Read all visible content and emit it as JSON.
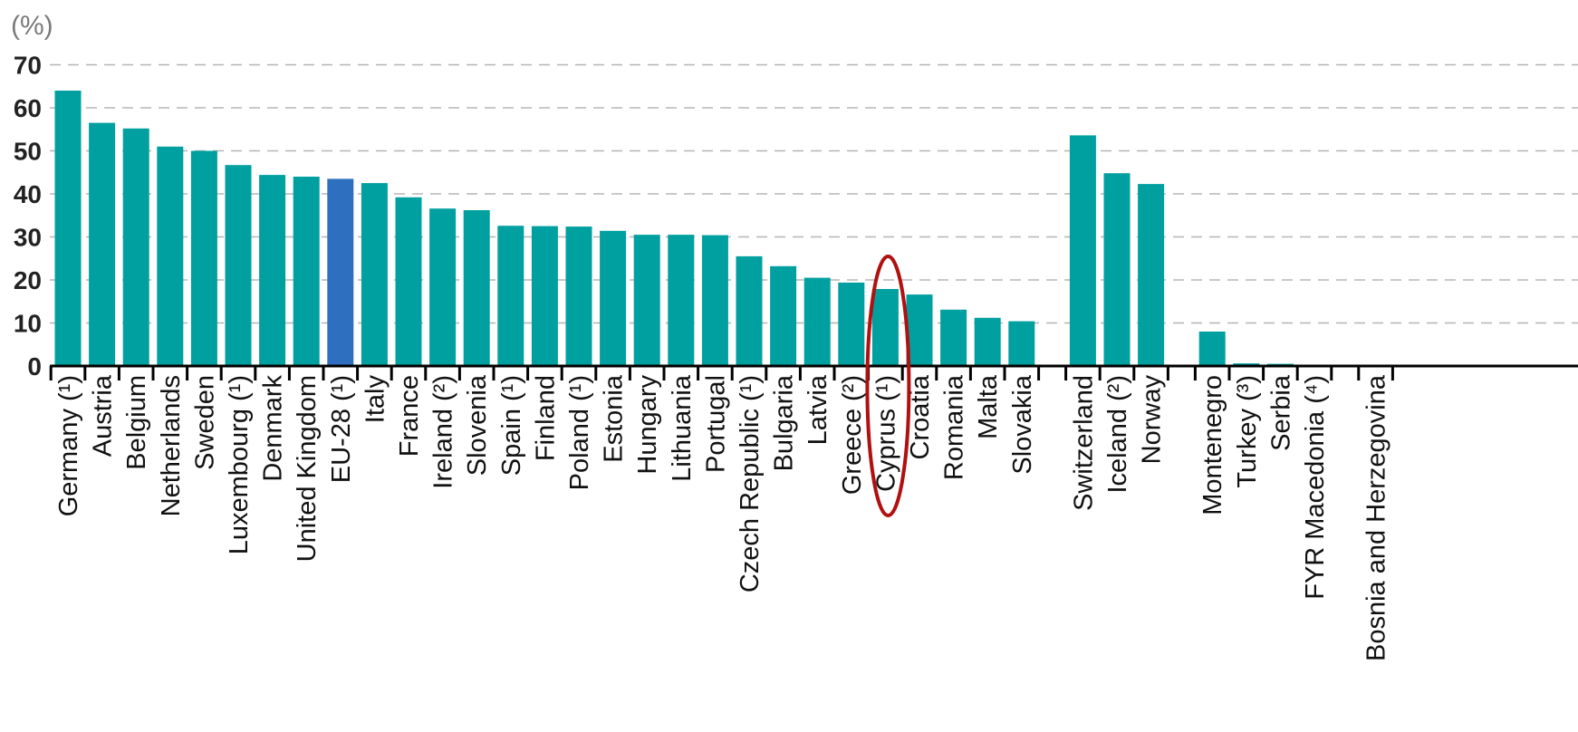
{
  "chart_data": {
    "type": "bar",
    "unit_label": "(%)",
    "ylim": [
      0,
      70
    ],
    "yticks": [
      0,
      10,
      20,
      30,
      40,
      50,
      60,
      70
    ],
    "grid": true,
    "colors": {
      "bar": "#00a0a0",
      "highlight": "#2e6fbf",
      "annotation": "#b01010",
      "axis": "#000000"
    },
    "highlight_category": "EU-28 (¹)",
    "annotated_category": "Cyprus (¹)",
    "groups": [
      {
        "categories": [
          "Germany (¹)",
          "Austria",
          "Belgium",
          "Netherlands",
          "Sweden",
          "Luxembourg (¹)",
          "Denmark",
          "United Kingdom",
          "EU-28 (¹)",
          "Italy",
          "France",
          "Ireland (²)",
          "Slovenia",
          "Spain (¹)",
          "Finland",
          "Poland (¹)",
          "Estonia",
          "Hungary",
          "Lithuania",
          "Portugal",
          "Czech Republic (¹)",
          "Bulgaria",
          "Latvia",
          "Greece (²)",
          "Cyprus (¹)",
          "Croatia",
          "Romania",
          "Malta",
          "Slovakia"
        ],
        "values": [
          64,
          56.5,
          55.2,
          51,
          50,
          46.7,
          44.4,
          44,
          43.5,
          42.5,
          39.2,
          36.6,
          36.2,
          32.6,
          32.5,
          32.4,
          31.4,
          30.5,
          30.5,
          30.4,
          25.5,
          23.2,
          20.5,
          19.4,
          17.9,
          16.6,
          13.1,
          11.2,
          10.4
        ]
      },
      {
        "categories": [
          "Switzerland",
          "Iceland (²)",
          "Norway"
        ],
        "values": [
          53.6,
          44.8,
          42.3
        ]
      },
      {
        "categories": [
          "Montenegro",
          "Turkey (³)",
          "Serbia",
          "FYR Macedonia (⁴)"
        ],
        "values": [
          8,
          0.6,
          0.5,
          0
        ]
      },
      {
        "categories": [
          "Bosnia and Herzegovina"
        ],
        "values": [
          0
        ]
      }
    ]
  }
}
